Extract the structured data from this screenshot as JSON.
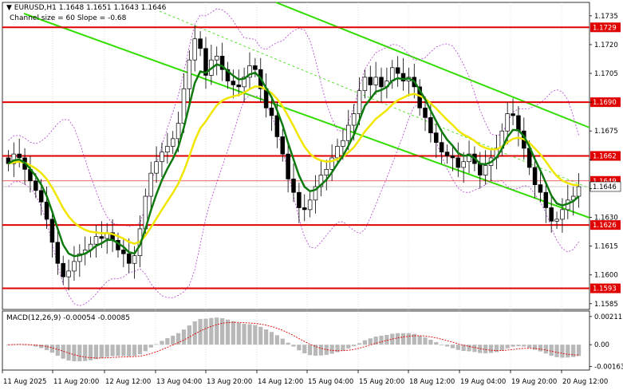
{
  "header": {
    "symbol_line": "▼ EURUSD,H1  1.1648 1.1651 1.1643 1.1646",
    "channel_line": "Channel size = 60 Slope = -0.68"
  },
  "macd_label": "MACD(12,26,9) -0.00054 -0.00085",
  "colors": {
    "level_line": "#e00000",
    "ma_green": "#0e7a0e",
    "ma_yellow": "#f0e600",
    "channel": "#33dd00",
    "bollinger": "#b040d0",
    "candle": "#000000",
    "macd_hist": "#b8b8b8",
    "macd_signal": "#e00000",
    "grid": "#e8e8e8",
    "vgrid": "#cfcfcf"
  },
  "chart_data": {
    "type": "candlestick",
    "symbol": "EURUSD",
    "timeframe": "H1",
    "ohlc_current": {
      "open": 1.1648,
      "high": 1.1651,
      "low": 1.1643,
      "close": 1.1646
    },
    "price_ticks": [
      1.1735,
      1.172,
      1.1705,
      1.169,
      1.1675,
      1.166,
      1.1645,
      1.163,
      1.1615,
      1.16,
      1.1585
    ],
    "x_labels": [
      "11 Aug 2025",
      "11 Aug 20:00",
      "12 Aug 12:00",
      "13 Aug 04:00",
      "13 Aug 20:00",
      "14 Aug 12:00",
      "15 Aug 04:00",
      "15 Aug 20:00",
      "18 Aug 12:00",
      "19 Aug 04:00",
      "19 Aug 20:00",
      "20 Aug 12:00"
    ],
    "levels": [
      {
        "label": "1.1729",
        "value": 1.1729
      },
      {
        "label": "1.1690",
        "value": 1.169
      },
      {
        "label": "1.1662",
        "value": 1.1662
      },
      {
        "label": "1.1626",
        "value": 1.1626
      },
      {
        "label": "1.1593",
        "value": 1.1593
      }
    ],
    "current_price": {
      "label": "1.1646",
      "value": 1.1646
    },
    "marker_price": {
      "label": "1.1649",
      "value": 1.1649
    },
    "close_series": [
      1.1658,
      1.1663,
      1.1661,
      1.1655,
      1.1649,
      1.1644,
      1.1638,
      1.1629,
      1.1617,
      1.1606,
      1.1599,
      1.1602,
      1.1607,
      1.1611,
      1.1613,
      1.1616,
      1.162,
      1.1619,
      1.1622,
      1.1618,
      1.1613,
      1.1611,
      1.1606,
      1.161,
      1.1624,
      1.1641,
      1.1653,
      1.1659,
      1.1664,
      1.1667,
      1.1671,
      1.1679,
      1.1697,
      1.1712,
      1.1723,
      1.1718,
      1.1704,
      1.1712,
      1.1714,
      1.1707,
      1.1701,
      1.1699,
      1.1698,
      1.1703,
      1.1709,
      1.1707,
      1.1697,
      1.1687,
      1.1683,
      1.1672,
      1.1663,
      1.165,
      1.1643,
      1.1635,
      1.1634,
      1.1639,
      1.1646,
      1.1652,
      1.1655,
      1.1661,
      1.1667,
      1.167,
      1.1678,
      1.1684,
      1.1696,
      1.1703,
      1.1699,
      1.1703,
      1.1698,
      1.1701,
      1.1708,
      1.1705,
      1.1701,
      1.1703,
      1.1698,
      1.1687,
      1.1682,
      1.1674,
      1.1669,
      1.1664,
      1.1662,
      1.1661,
      1.1656,
      1.1659,
      1.1663,
      1.1658,
      1.1652,
      1.1657,
      1.1661,
      1.1666,
      1.1675,
      1.1684,
      1.1683,
      1.1675,
      1.1666,
      1.1656,
      1.1647,
      1.1643,
      1.1635,
      1.1628,
      1.1629,
      1.1634,
      1.1639,
      1.1641,
      1.1646
    ],
    "macd_ticks": [
      0.00211,
      0.0,
      -0.00163
    ],
    "ylim": [
      1.1582,
      1.1742
    ]
  }
}
